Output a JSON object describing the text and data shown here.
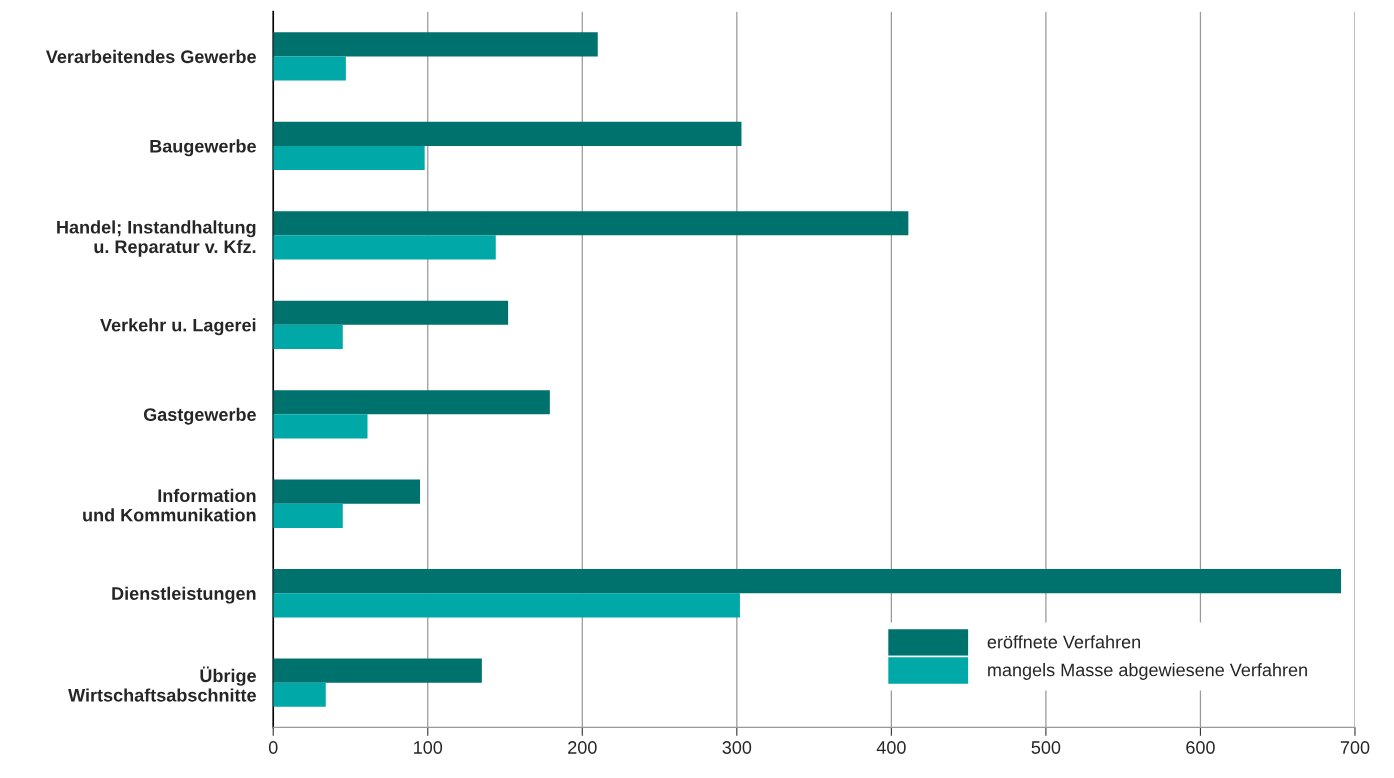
{
  "chart_data": {
    "type": "bar",
    "orientation": "horizontal",
    "categories": [
      "Verarbeitendes Gewerbe",
      "Baugewerbe",
      "Handel; Instandhaltung\nu. Reparatur v. Kfz.",
      "Verkehr u. Lagerei",
      "Gastgewerbe",
      "Information\nund Kommunikation",
      "Dienstleistungen",
      "Übrige\nWirtschaftsabschnitte"
    ],
    "series": [
      {
        "name": "eröffnete Verfahren",
        "color": "#00726e",
        "values": [
          210,
          303,
          411,
          152,
          179,
          95,
          691,
          135
        ]
      },
      {
        "name": "mangels Masse abgewiesene Verfahren",
        "color": "#00a8a8",
        "values": [
          47,
          98,
          144,
          45,
          61,
          45,
          302,
          34
        ]
      }
    ],
    "xlim": [
      0,
      700
    ],
    "xticks": [
      0,
      100,
      200,
      300,
      400,
      500,
      600,
      700
    ],
    "grid": "x",
    "legend": "bottom right"
  }
}
